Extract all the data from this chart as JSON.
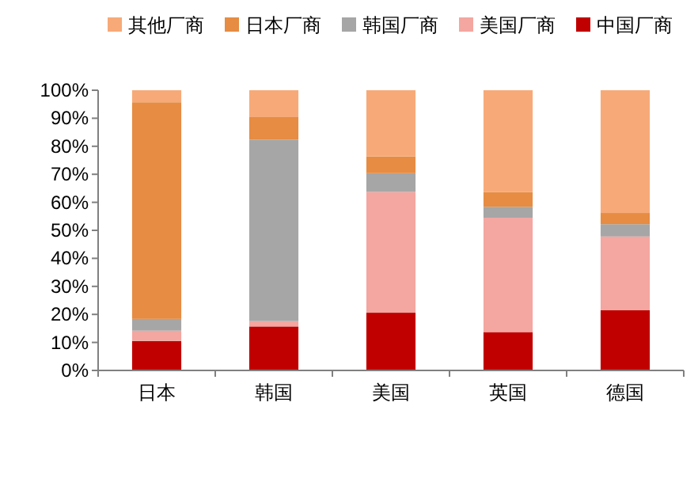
{
  "chart_data": {
    "type": "bar",
    "stacked": true,
    "categories": [
      "日本",
      "韩国",
      "美国",
      "英国",
      "德国"
    ],
    "series": [
      {
        "name": "中国厂商",
        "color": "#c00000",
        "values": [
          10.5,
          15.7,
          20.6,
          13.7,
          21.5
        ]
      },
      {
        "name": "美国厂商",
        "color": "#f4a6a0",
        "values": [
          3.7,
          1.9,
          43.1,
          40.8,
          26.3
        ]
      },
      {
        "name": "韩国厂商",
        "color": "#a6a6a6",
        "values": [
          4.2,
          64.8,
          6.7,
          3.9,
          4.4
        ]
      },
      {
        "name": "日本厂商",
        "color": "#e68c43",
        "values": [
          77.3,
          8.0,
          6.0,
          5.3,
          4.0
        ]
      },
      {
        "name": "其他厂商",
        "color": "#f7aa78",
        "values": [
          4.3,
          9.6,
          23.6,
          36.3,
          43.8
        ]
      }
    ],
    "ylim": [
      0,
      100
    ],
    "yticks": [
      {
        "value": 0,
        "label": "0%"
      },
      {
        "value": 10,
        "label": "10%"
      },
      {
        "value": 20,
        "label": "20%"
      },
      {
        "value": 30,
        "label": "30%"
      },
      {
        "value": 40,
        "label": "40%"
      },
      {
        "value": 50,
        "label": "50%"
      },
      {
        "value": 60,
        "label": "60%"
      },
      {
        "value": 70,
        "label": "70%"
      },
      {
        "value": 80,
        "label": "80%"
      },
      {
        "value": 90,
        "label": "90%"
      },
      {
        "value": 100,
        "label": "100%"
      }
    ],
    "legend": "top",
    "grid": false
  }
}
